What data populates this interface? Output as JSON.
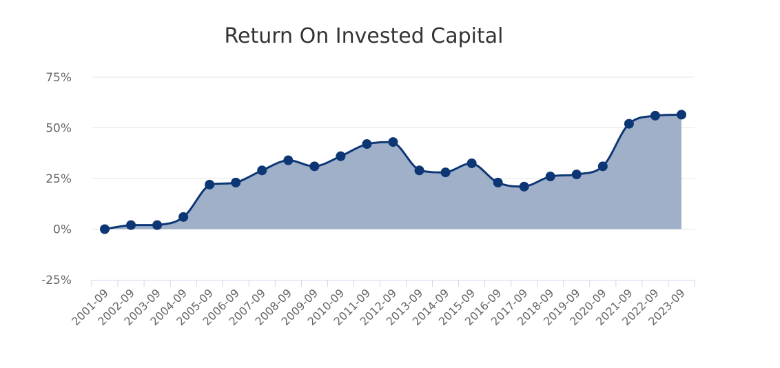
{
  "chart_data": {
    "type": "area",
    "title": "Return On Invested Capital",
    "categories": [
      "2001-09",
      "2002-09",
      "2003-09",
      "2004-09",
      "2005-09",
      "2006-09",
      "2007-09",
      "2008-09",
      "2009-09",
      "2010-09",
      "2011-09",
      "2012-09",
      "2013-09",
      "2014-09",
      "2015-09",
      "2016-09",
      "2017-09",
      "2018-09",
      "2019-09",
      "2020-09",
      "2021-09",
      "2022-09",
      "2023-09"
    ],
    "series": [
      {
        "values": [
          0,
          2,
          2,
          6,
          22,
          23,
          29,
          34,
          31,
          36,
          42,
          43,
          29,
          28,
          32.5,
          23,
          21,
          26,
          27,
          31,
          52,
          56,
          56.5
        ]
      }
    ],
    "y_ticks": [
      "75%",
      "50%",
      "25%",
      "0%",
      "-25%"
    ],
    "ylim": [
      -25,
      75
    ],
    "grid": true,
    "legend": "none",
    "colors": {
      "line": "#0d3675",
      "fill": "#9fb0c8",
      "marker": "#0d3675"
    }
  }
}
